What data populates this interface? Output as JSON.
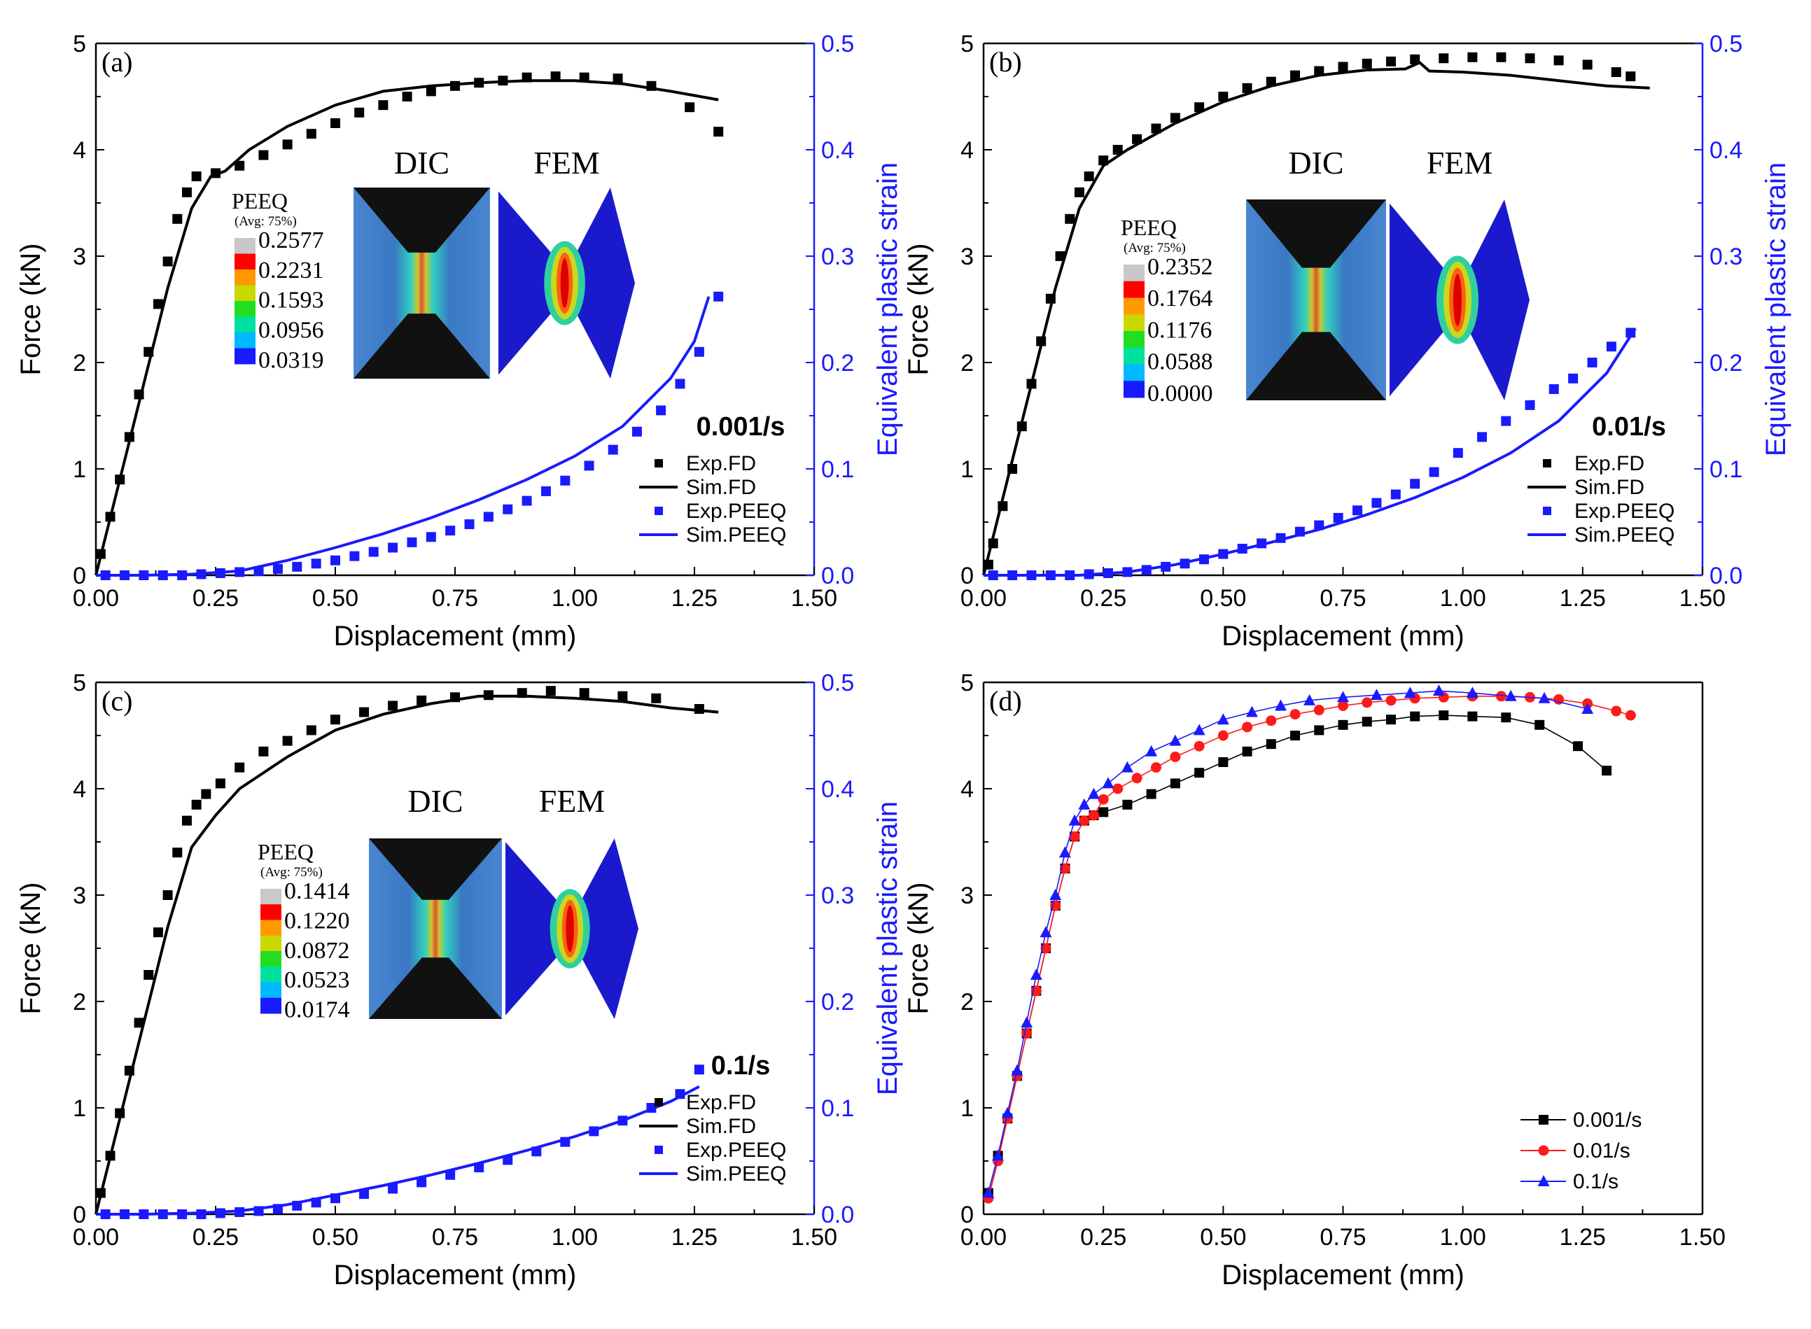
{
  "colors": {
    "axis": "#000000",
    "black_series": "#000000",
    "blue_series": "#1a1aff",
    "red_series": "#ff1a1a",
    "colorbar": [
      "#c8c8c8",
      "#ff0000",
      "#ff9900",
      "#c8d800",
      "#22dd22",
      "#00e0a0",
      "#00b8ff",
      "#1a1aff"
    ]
  },
  "shared": {
    "xlabel": "Displacement (mm)",
    "ylabel_left": "Force (kN)",
    "ylabel_right": "Equivalent plastic strain",
    "x_ticks": [
      "0.00",
      "0.25",
      "0.50",
      "0.75",
      "1.00",
      "1.25",
      "1.50"
    ],
    "y_ticks_left": [
      "0",
      "1",
      "2",
      "3",
      "4",
      "5"
    ],
    "y_ticks_right": [
      "0.0",
      "0.1",
      "0.2",
      "0.3",
      "0.4",
      "0.5"
    ],
    "legend": [
      "Exp.FD",
      "Sim.FD",
      "Exp.PEEQ",
      "Sim.PEEQ"
    ],
    "inset_titles": [
      "DIC",
      "FEM"
    ],
    "peeq_title": "PEEQ",
    "peeq_subtitle": "(Avg: 75%)"
  },
  "panels": [
    {
      "id": "a",
      "label": "(a)",
      "rate": "0.001/s",
      "peeq_values": [
        "0.2577",
        "0.2231",
        "0.1593",
        "0.0956",
        "0.0319"
      ]
    },
    {
      "id": "b",
      "label": "(b)",
      "rate": "0.01/s",
      "peeq_values": [
        "0.2352",
        "0.1764",
        "0.1176",
        "0.0588",
        "0.0000"
      ]
    },
    {
      "id": "c",
      "label": "(c)",
      "rate": "0.1/s",
      "peeq_values": [
        "0.1414",
        "0.1220",
        "0.0872",
        "0.0523",
        "0.0174"
      ]
    },
    {
      "id": "d",
      "label": "(d)",
      "legend": [
        "0.001/s",
        "0.01/s",
        "0.1/s"
      ]
    }
  ],
  "chart_data": [
    {
      "type": "line",
      "panel": "a",
      "xlabel": "Displacement (mm)",
      "ylabel": "Force (kN)",
      "ylabel_right": "Equivalent plastic strain",
      "xlim": [
        0,
        1.5
      ],
      "ylim": [
        0,
        5
      ],
      "ylim_right": [
        0,
        0.5
      ],
      "series": [
        {
          "name": "Exp.FD",
          "axis": "left",
          "style": "square",
          "x": [
            0.01,
            0.03,
            0.05,
            0.07,
            0.09,
            0.11,
            0.13,
            0.15,
            0.17,
            0.19,
            0.21,
            0.25,
            0.3,
            0.35,
            0.4,
            0.45,
            0.5,
            0.55,
            0.6,
            0.65,
            0.7,
            0.75,
            0.8,
            0.85,
            0.9,
            0.96,
            1.02,
            1.09,
            1.16,
            1.24,
            1.3
          ],
          "y": [
            0.2,
            0.55,
            0.9,
            1.3,
            1.7,
            2.1,
            2.55,
            2.95,
            3.35,
            3.6,
            3.75,
            3.78,
            3.85,
            3.95,
            4.05,
            4.15,
            4.25,
            4.35,
            4.42,
            4.5,
            4.55,
            4.6,
            4.63,
            4.65,
            4.68,
            4.69,
            4.68,
            4.67,
            4.6,
            4.4,
            4.17
          ]
        },
        {
          "name": "Sim.FD",
          "axis": "left",
          "style": "line",
          "x": [
            0,
            0.05,
            0.1,
            0.15,
            0.2,
            0.24,
            0.27,
            0.32,
            0.4,
            0.5,
            0.6,
            0.7,
            0.8,
            0.9,
            1.0,
            1.1,
            1.2,
            1.3
          ],
          "y": [
            0,
            0.9,
            1.8,
            2.7,
            3.45,
            3.75,
            3.8,
            4.0,
            4.22,
            4.42,
            4.55,
            4.6,
            4.63,
            4.65,
            4.65,
            4.62,
            4.55,
            4.47
          ]
        },
        {
          "name": "Exp.PEEQ",
          "axis": "right",
          "style": "square",
          "x": [
            0.02,
            0.06,
            0.1,
            0.14,
            0.18,
            0.22,
            0.26,
            0.3,
            0.34,
            0.38,
            0.42,
            0.46,
            0.5,
            0.54,
            0.58,
            0.62,
            0.66,
            0.7,
            0.74,
            0.78,
            0.82,
            0.86,
            0.9,
            0.94,
            0.98,
            1.03,
            1.08,
            1.13,
            1.18,
            1.22,
            1.26,
            1.3
          ],
          "y": [
            0.0,
            0.0,
            0.0,
            0.0,
            0.0,
            0.001,
            0.002,
            0.003,
            0.004,
            0.006,
            0.008,
            0.011,
            0.014,
            0.018,
            0.022,
            0.026,
            0.031,
            0.036,
            0.042,
            0.048,
            0.055,
            0.062,
            0.07,
            0.079,
            0.089,
            0.103,
            0.118,
            0.135,
            0.155,
            0.18,
            0.21,
            0.262
          ]
        },
        {
          "name": "Sim.PEEQ",
          "axis": "right",
          "style": "line",
          "x": [
            0,
            0.1,
            0.2,
            0.3,
            0.4,
            0.5,
            0.6,
            0.7,
            0.8,
            0.9,
            1.0,
            1.1,
            1.2,
            1.25,
            1.28
          ],
          "y": [
            0,
            0,
            0.001,
            0.004,
            0.014,
            0.026,
            0.039,
            0.054,
            0.071,
            0.09,
            0.112,
            0.14,
            0.185,
            0.22,
            0.262
          ]
        }
      ]
    },
    {
      "type": "line",
      "panel": "b",
      "xlabel": "Displacement (mm)",
      "ylabel": "Force (kN)",
      "ylabel_right": "Equivalent plastic strain",
      "xlim": [
        0,
        1.5
      ],
      "ylim": [
        0,
        5
      ],
      "ylim_right": [
        0,
        0.5
      ],
      "series": [
        {
          "name": "Exp.FD",
          "axis": "left",
          "style": "square",
          "x": [
            0.01,
            0.02,
            0.04,
            0.06,
            0.08,
            0.1,
            0.12,
            0.14,
            0.16,
            0.18,
            0.2,
            0.22,
            0.25,
            0.28,
            0.32,
            0.36,
            0.4,
            0.45,
            0.5,
            0.55,
            0.6,
            0.65,
            0.7,
            0.75,
            0.8,
            0.85,
            0.9,
            0.96,
            1.02,
            1.08,
            1.14,
            1.2,
            1.26,
            1.32,
            1.35
          ],
          "y": [
            0.1,
            0.3,
            0.65,
            1.0,
            1.4,
            1.8,
            2.2,
            2.6,
            3.0,
            3.35,
            3.6,
            3.75,
            3.9,
            4.0,
            4.1,
            4.2,
            4.3,
            4.4,
            4.5,
            4.58,
            4.64,
            4.7,
            4.74,
            4.78,
            4.81,
            4.83,
            4.85,
            4.86,
            4.87,
            4.87,
            4.86,
            4.84,
            4.8,
            4.73,
            4.69
          ]
        },
        {
          "name": "Sim.FD",
          "axis": "left",
          "style": "line",
          "x": [
            0,
            0.05,
            0.1,
            0.15,
            0.2,
            0.25,
            0.3,
            0.4,
            0.5,
            0.6,
            0.7,
            0.8,
            0.88,
            0.91,
            0.93,
            1.0,
            1.1,
            1.2,
            1.3,
            1.39
          ],
          "y": [
            0,
            0.9,
            1.8,
            2.7,
            3.45,
            3.85,
            4.0,
            4.25,
            4.45,
            4.6,
            4.7,
            4.75,
            4.76,
            4.82,
            4.74,
            4.73,
            4.7,
            4.65,
            4.6,
            4.58
          ]
        },
        {
          "name": "Exp.PEEQ",
          "axis": "right",
          "style": "square",
          "x": [
            0.02,
            0.06,
            0.1,
            0.14,
            0.18,
            0.22,
            0.26,
            0.3,
            0.34,
            0.38,
            0.42,
            0.46,
            0.5,
            0.54,
            0.58,
            0.62,
            0.66,
            0.7,
            0.74,
            0.78,
            0.82,
            0.86,
            0.9,
            0.94,
            0.99,
            1.04,
            1.09,
            1.14,
            1.19,
            1.23,
            1.27,
            1.31,
            1.35
          ],
          "y": [
            0,
            0,
            0,
            0,
            0,
            0.001,
            0.002,
            0.003,
            0.005,
            0.008,
            0.011,
            0.015,
            0.02,
            0.025,
            0.03,
            0.035,
            0.041,
            0.047,
            0.054,
            0.061,
            0.068,
            0.076,
            0.086,
            0.097,
            0.115,
            0.13,
            0.145,
            0.16,
            0.175,
            0.185,
            0.2,
            0.215,
            0.228
          ]
        },
        {
          "name": "Sim.PEEQ",
          "axis": "right",
          "style": "line",
          "x": [
            0,
            0.1,
            0.2,
            0.3,
            0.4,
            0.5,
            0.6,
            0.7,
            0.8,
            0.9,
            1.0,
            1.1,
            1.2,
            1.3,
            1.36
          ],
          "y": [
            0,
            0,
            0.0,
            0.003,
            0.01,
            0.02,
            0.031,
            0.043,
            0.057,
            0.073,
            0.092,
            0.115,
            0.145,
            0.19,
            0.232
          ]
        }
      ]
    },
    {
      "type": "line",
      "panel": "c",
      "xlabel": "Displacement (mm)",
      "ylabel": "Force (kN)",
      "ylabel_right": "Equivalent plastic strain",
      "xlim": [
        0,
        1.5
      ],
      "ylim": [
        0,
        5
      ],
      "ylim_right": [
        0,
        0.5
      ],
      "series": [
        {
          "name": "Exp.FD",
          "axis": "left",
          "style": "square",
          "x": [
            0.01,
            0.03,
            0.05,
            0.07,
            0.09,
            0.11,
            0.13,
            0.15,
            0.17,
            0.19,
            0.21,
            0.23,
            0.26,
            0.3,
            0.35,
            0.4,
            0.45,
            0.5,
            0.56,
            0.62,
            0.68,
            0.75,
            0.82,
            0.89,
            0.95,
            1.02,
            1.1,
            1.17,
            1.26
          ],
          "y": [
            0.2,
            0.55,
            0.95,
            1.35,
            1.8,
            2.25,
            2.65,
            3.0,
            3.4,
            3.7,
            3.85,
            3.95,
            4.05,
            4.2,
            4.35,
            4.45,
            4.55,
            4.65,
            4.72,
            4.78,
            4.83,
            4.86,
            4.88,
            4.9,
            4.92,
            4.9,
            4.87,
            4.85,
            4.75
          ]
        },
        {
          "name": "Sim.FD",
          "axis": "left",
          "style": "line",
          "x": [
            0,
            0.05,
            0.1,
            0.15,
            0.2,
            0.25,
            0.3,
            0.4,
            0.5,
            0.6,
            0.7,
            0.8,
            0.9,
            1.0,
            1.1,
            1.2,
            1.3
          ],
          "y": [
            0,
            0.9,
            1.8,
            2.7,
            3.45,
            3.75,
            4.0,
            4.3,
            4.55,
            4.7,
            4.8,
            4.87,
            4.87,
            4.85,
            4.82,
            4.76,
            4.72
          ]
        },
        {
          "name": "Exp.PEEQ",
          "axis": "right",
          "style": "square",
          "x": [
            0.02,
            0.06,
            0.1,
            0.14,
            0.18,
            0.22,
            0.26,
            0.3,
            0.34,
            0.38,
            0.42,
            0.46,
            0.5,
            0.56,
            0.62,
            0.68,
            0.74,
            0.8,
            0.86,
            0.92,
            0.98,
            1.04,
            1.1,
            1.16,
            1.22,
            1.26
          ],
          "y": [
            0,
            0,
            0,
            0,
            0,
            0.0,
            0.001,
            0.002,
            0.003,
            0.005,
            0.008,
            0.011,
            0.015,
            0.019,
            0.024,
            0.03,
            0.037,
            0.044,
            0.051,
            0.059,
            0.068,
            0.078,
            0.088,
            0.1,
            0.113,
            0.136
          ]
        },
        {
          "name": "Sim.PEEQ",
          "axis": "right",
          "style": "line",
          "x": [
            0,
            0.1,
            0.2,
            0.3,
            0.4,
            0.5,
            0.6,
            0.7,
            0.8,
            0.9,
            1.0,
            1.1,
            1.2,
            1.26
          ],
          "y": [
            0,
            0,
            0.001,
            0.003,
            0.009,
            0.018,
            0.027,
            0.037,
            0.048,
            0.06,
            0.073,
            0.088,
            0.106,
            0.12
          ]
        }
      ]
    },
    {
      "type": "line",
      "panel": "d",
      "xlabel": "Displacement (mm)",
      "ylabel": "Force (kN)",
      "xlim": [
        0,
        1.5
      ],
      "ylim": [
        0,
        5
      ],
      "series": [
        {
          "name": "0.001/s",
          "style": "square",
          "color": "#000000",
          "x": [
            0.01,
            0.03,
            0.05,
            0.07,
            0.09,
            0.11,
            0.13,
            0.15,
            0.17,
            0.19,
            0.21,
            0.23,
            0.25,
            0.3,
            0.35,
            0.4,
            0.45,
            0.5,
            0.55,
            0.6,
            0.65,
            0.7,
            0.75,
            0.8,
            0.85,
            0.9,
            0.96,
            1.02,
            1.09,
            1.16,
            1.24,
            1.3
          ],
          "y": [
            0.2,
            0.55,
            0.9,
            1.3,
            1.7,
            2.1,
            2.5,
            2.9,
            3.25,
            3.55,
            3.7,
            3.75,
            3.78,
            3.85,
            3.95,
            4.05,
            4.15,
            4.25,
            4.35,
            4.42,
            4.5,
            4.55,
            4.6,
            4.63,
            4.65,
            4.68,
            4.69,
            4.68,
            4.67,
            4.6,
            4.4,
            4.17
          ]
        },
        {
          "name": "0.01/s",
          "style": "circle",
          "color": "#ff1a1a",
          "x": [
            0.01,
            0.03,
            0.05,
            0.07,
            0.09,
            0.11,
            0.13,
            0.15,
            0.17,
            0.19,
            0.21,
            0.23,
            0.25,
            0.28,
            0.32,
            0.36,
            0.4,
            0.45,
            0.5,
            0.55,
            0.6,
            0.65,
            0.7,
            0.75,
            0.8,
            0.85,
            0.9,
            0.96,
            1.02,
            1.08,
            1.14,
            1.2,
            1.26,
            1.32,
            1.35
          ],
          "y": [
            0.15,
            0.5,
            0.9,
            1.3,
            1.7,
            2.1,
            2.5,
            2.9,
            3.25,
            3.55,
            3.7,
            3.75,
            3.9,
            4.0,
            4.1,
            4.2,
            4.3,
            4.4,
            4.5,
            4.58,
            4.64,
            4.7,
            4.74,
            4.78,
            4.81,
            4.83,
            4.85,
            4.86,
            4.87,
            4.87,
            4.86,
            4.84,
            4.8,
            4.73,
            4.69
          ]
        },
        {
          "name": "0.1/s",
          "style": "triangle",
          "color": "#1a1aff",
          "x": [
            0.01,
            0.03,
            0.05,
            0.07,
            0.09,
            0.11,
            0.13,
            0.15,
            0.17,
            0.19,
            0.21,
            0.23,
            0.26,
            0.3,
            0.35,
            0.4,
            0.45,
            0.5,
            0.56,
            0.62,
            0.68,
            0.75,
            0.82,
            0.89,
            0.95,
            1.02,
            1.1,
            1.17,
            1.26
          ],
          "y": [
            0.2,
            0.55,
            0.95,
            1.35,
            1.8,
            2.25,
            2.65,
            3.0,
            3.4,
            3.7,
            3.85,
            3.95,
            4.05,
            4.2,
            4.35,
            4.45,
            4.55,
            4.65,
            4.72,
            4.78,
            4.83,
            4.86,
            4.88,
            4.9,
            4.92,
            4.9,
            4.87,
            4.85,
            4.75
          ]
        }
      ]
    }
  ]
}
